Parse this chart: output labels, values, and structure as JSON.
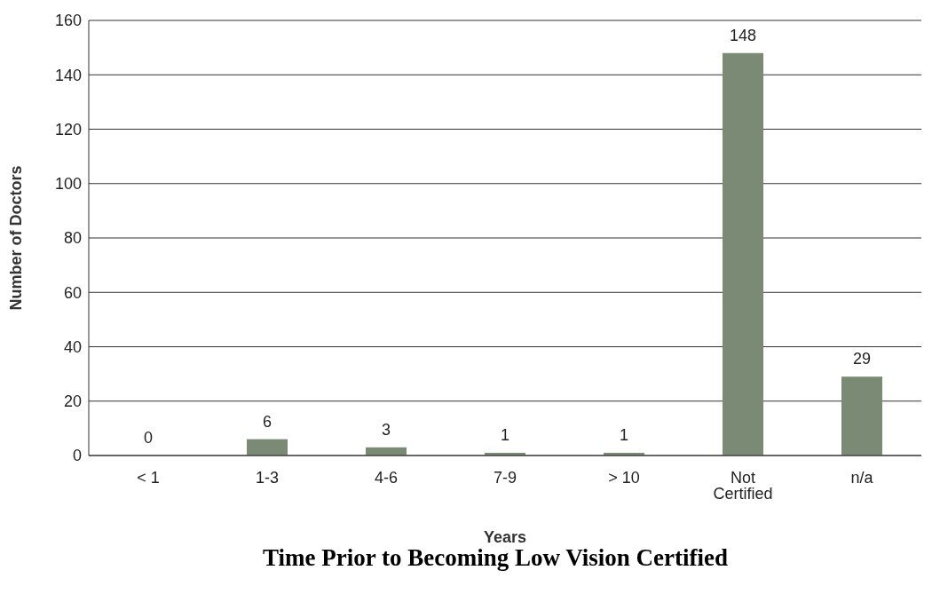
{
  "chart_data": {
    "type": "bar",
    "title": "Time Prior to Becoming Low Vision Certified",
    "xlabel": "Years",
    "ylabel": "Number of Doctors",
    "categories": [
      "< 1",
      "1-3",
      "4-6",
      "7-9",
      "> 10",
      "Not Certified",
      "n/a"
    ],
    "values": [
      0,
      6,
      3,
      1,
      1,
      148,
      29
    ],
    "color": "#7b8a74",
    "ylim": [
      0,
      160
    ],
    "yticks": [
      0,
      20,
      40,
      60,
      80,
      100,
      120,
      140,
      160
    ],
    "grid": "y",
    "data_labels": true
  }
}
